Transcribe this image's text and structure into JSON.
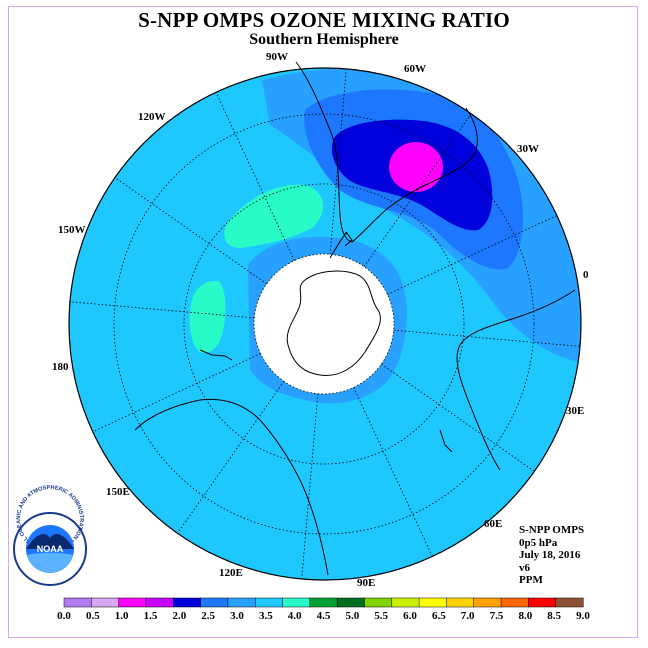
{
  "title": "S-NPP OMPS OZONE MIXING RATIO",
  "subtitle": "Southern Hemisphere",
  "longitude_labels": {
    "lon_90w": "90W",
    "lon_60w": "60W",
    "lon_120w": "120W",
    "lon_30w": "30W",
    "lon_150w": "150W",
    "lon_0": "0",
    "lon_180": "180",
    "lon_30e": "30E",
    "lon_150e": "150E",
    "lon_60e": "60E",
    "lon_120e": "120E",
    "lon_90e": "90E"
  },
  "info": {
    "product": "S-NPP OMPS",
    "level": "0p5 hPa",
    "date": "July 18, 2016",
    "version": "v6",
    "units": "PPM"
  },
  "logo": {
    "text": "NOAA",
    "ring_text": "NATIONAL OCEANIC AND ATMOSPHERIC ADMINISTRATION • U.S. DEPARTMENT OF COMMERCE"
  },
  "colorbar": {
    "labels": [
      "0.0",
      "0.5",
      "1.0",
      "1.5",
      "2.0",
      "2.5",
      "3.0",
      "3.5",
      "4.0",
      "4.5",
      "5.0",
      "5.5",
      "6.0",
      "6.5",
      "7.0",
      "7.5",
      "8.0",
      "8.5",
      "9.0"
    ],
    "colors": [
      "#b37bef",
      "#d9a6f2",
      "#ff00ff",
      "#c800ff",
      "#0000dc",
      "#1e78ff",
      "#28a0ff",
      "#1ec8ff",
      "#28fac8",
      "#00a032",
      "#006e1e",
      "#82d200",
      "#c8f000",
      "#ffff00",
      "#ffd200",
      "#ffa000",
      "#ff6400",
      "#ff0000",
      "#8c5032"
    ]
  },
  "map_colors": {
    "level_3_0_3_5": "#1ec8ff",
    "level_2_5_3_0": "#28a0ff",
    "level_2_0_2_5": "#1e78ff",
    "level_1_5_2_0": "#0000dc",
    "level_1_0_1_5": "#ff00ff",
    "level_3_5_4_0": "#28fac8",
    "no_data": "#ffffff"
  }
}
